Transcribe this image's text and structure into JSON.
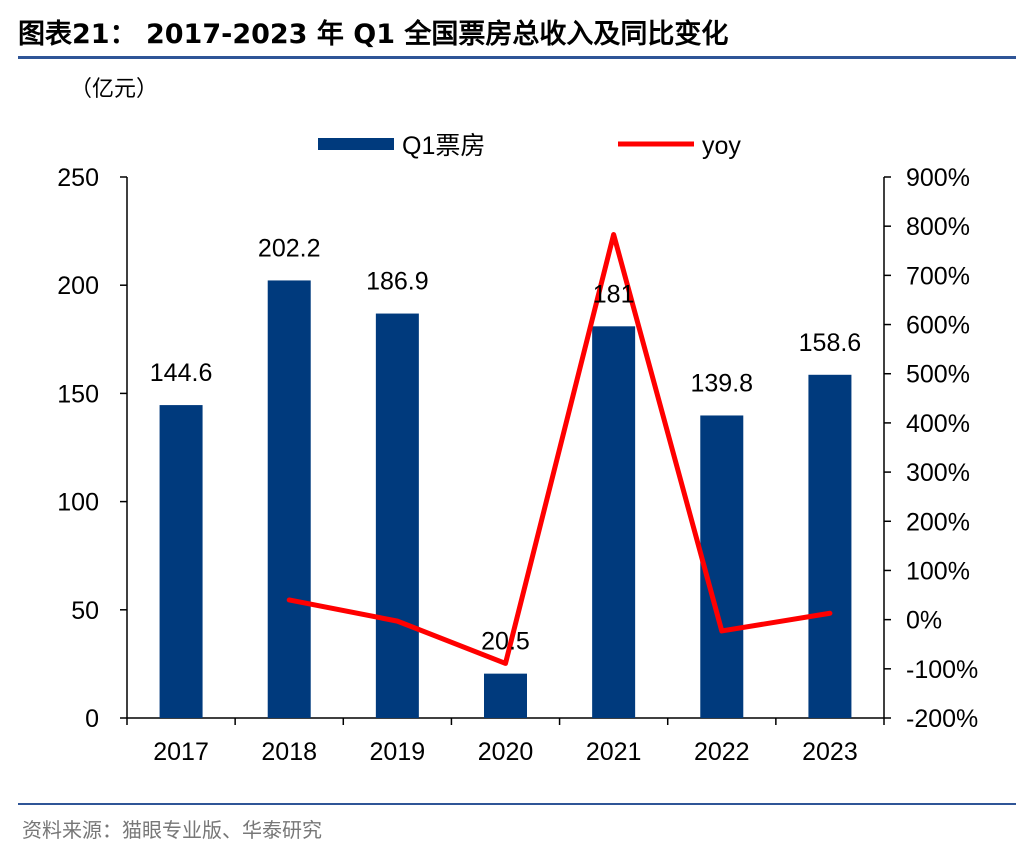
{
  "title": "图表21： 2017-2023 年 Q1 全国票房总收入及同比变化",
  "source": "资料来源：猫眼专业版、华泰研究",
  "chart_data": {
    "type": "bar",
    "categories": [
      "2017",
      "2018",
      "2019",
      "2020",
      "2021",
      "2022",
      "2023"
    ],
    "unit_label": "（亿元）",
    "left_axis": {
      "min": 0,
      "max": 250,
      "ticks": [
        "0",
        "50",
        "100",
        "150",
        "200",
        "250"
      ]
    },
    "right_axis": {
      "min": -200,
      "max": 900,
      "ticks": [
        "-200%",
        "-100%",
        "0%",
        "100%",
        "200%",
        "300%",
        "400%",
        "500%",
        "600%",
        "700%",
        "800%",
        "900%"
      ]
    },
    "series": [
      {
        "name": "Q1票房",
        "kind": "bar",
        "axis": "left",
        "color": "#003a7d",
        "values": [
          144.6,
          202.2,
          186.9,
          20.5,
          181,
          139.8,
          158.6
        ],
        "labels": [
          "144.6",
          "202.2",
          "186.9",
          "20.5",
          "181",
          "139.8",
          "158.6"
        ]
      },
      {
        "name": "yoy",
        "kind": "line",
        "axis": "right",
        "color": "#ff0000",
        "values": [
          null,
          40,
          -3,
          -89,
          783,
          -23,
          13
        ]
      }
    ],
    "legend_position": "top",
    "grid": false
  }
}
